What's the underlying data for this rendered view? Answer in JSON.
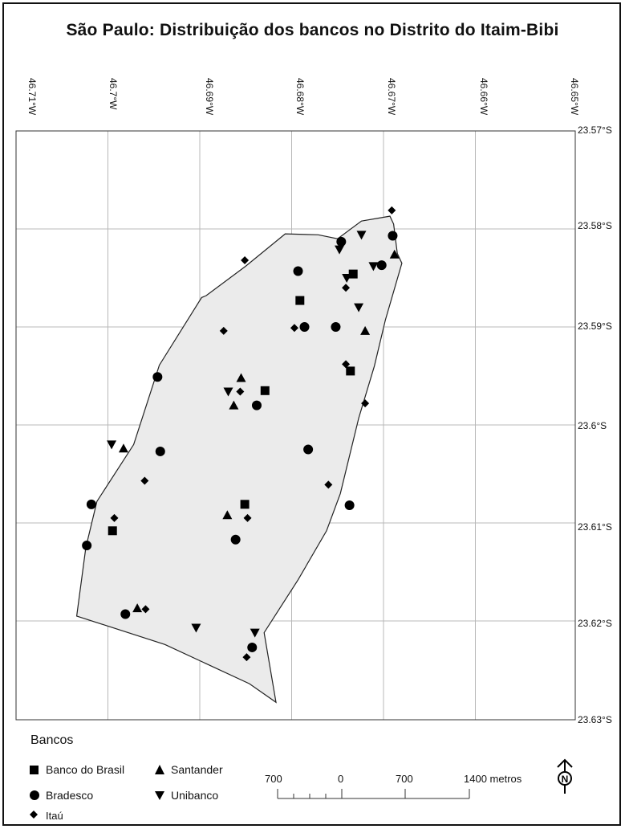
{
  "title": "São Paulo: Distribuição dos bancos no Distrito do Itaim-Bibi",
  "lon_labels": [
    "46.71°W",
    "46.7°W",
    "46.69°W",
    "46.68°W",
    "46.67°W",
    "46.66°W",
    "46.65°W"
  ],
  "lat_labels": [
    "23.57°S",
    "23.58°S",
    "23.59°S",
    "23.6°S",
    "23.61°S",
    "23.62°S",
    "23.63°S"
  ],
  "legend": {
    "title": "Bancos",
    "items": {
      "banco_do_brasil": "Banco do Brasil",
      "santander": "Santander",
      "bradesco": "Bradesco",
      "unibanco": "Unibanco",
      "itau": "Itaú"
    }
  },
  "scale_bar": {
    "labels": [
      "700",
      "0",
      "700",
      "1400 metros"
    ]
  },
  "north_arrow": "N",
  "colors": {
    "district_fill": "#ebebeb",
    "outline": "#222222",
    "grid": "#b8b8b8",
    "symbol": "#000000"
  },
  "banks": [
    {
      "type": "itau",
      "lon": -46.6691,
      "lat": -23.5781
    },
    {
      "type": "bradesco",
      "lon": -46.669,
      "lat": -23.5807
    },
    {
      "type": "santander",
      "lon": -46.6688,
      "lat": -23.5826
    },
    {
      "type": "bradesco",
      "lon": -46.6702,
      "lat": -23.5837
    },
    {
      "type": "unibanco",
      "lon": -46.6711,
      "lat": -23.5838
    },
    {
      "type": "unibanco",
      "lon": -46.6724,
      "lat": -23.5806
    },
    {
      "type": "bradesco",
      "lon": -46.6746,
      "lat": -23.5813
    },
    {
      "type": "unibanco",
      "lon": -46.6748,
      "lat": -23.5821
    },
    {
      "type": "banco_do_brasil",
      "lon": -46.6733,
      "lat": -23.5846
    },
    {
      "type": "unibanco",
      "lon": -46.674,
      "lat": -23.585
    },
    {
      "type": "itau",
      "lon": -46.6741,
      "lat": -23.586
    },
    {
      "type": "unibanco",
      "lon": -46.6727,
      "lat": -23.588
    },
    {
      "type": "bradesco",
      "lon": -46.6752,
      "lat": -23.59
    },
    {
      "type": "santander",
      "lon": -46.672,
      "lat": -23.5904
    },
    {
      "type": "itau",
      "lon": -46.6741,
      "lat": -23.5938
    },
    {
      "type": "banco_do_brasil",
      "lon": -46.6736,
      "lat": -23.5945
    },
    {
      "type": "itau",
      "lon": -46.672,
      "lat": -23.5978
    },
    {
      "type": "bradesco",
      "lon": -46.6793,
      "lat": -23.5843
    },
    {
      "type": "banco_do_brasil",
      "lon": -46.6791,
      "lat": -23.5873
    },
    {
      "type": "bradesco",
      "lon": -46.6786,
      "lat": -23.59
    },
    {
      "type": "itau",
      "lon": -46.6797,
      "lat": -23.5901
    },
    {
      "type": "itau",
      "lon": -46.6851,
      "lat": -23.5832
    },
    {
      "type": "itau",
      "lon": -46.6874,
      "lat": -23.5904
    },
    {
      "type": "bradesco",
      "lon": -46.6946,
      "lat": -23.5951
    },
    {
      "type": "santander",
      "lon": -46.6855,
      "lat": -23.5952
    },
    {
      "type": "banco_do_brasil",
      "lon": -46.6829,
      "lat": -23.5965
    },
    {
      "type": "unibanco",
      "lon": -46.6869,
      "lat": -23.5966
    },
    {
      "type": "itau",
      "lon": -46.6856,
      "lat": -23.5966
    },
    {
      "type": "santander",
      "lon": -46.6863,
      "lat": -23.598
    },
    {
      "type": "bradesco",
      "lon": -46.6838,
      "lat": -23.598
    },
    {
      "type": "bradesco",
      "lon": -46.6782,
      "lat": -23.6025
    },
    {
      "type": "itau",
      "lon": -46.676,
      "lat": -23.6061
    },
    {
      "type": "bradesco",
      "lon": -46.6737,
      "lat": -23.6082
    },
    {
      "type": "unibanco",
      "lon": -46.6996,
      "lat": -23.602
    },
    {
      "type": "santander",
      "lon": -46.6983,
      "lat": -23.6024
    },
    {
      "type": "bradesco",
      "lon": -46.6943,
      "lat": -23.6027
    },
    {
      "type": "itau",
      "lon": -46.696,
      "lat": -23.6057
    },
    {
      "type": "bradesco",
      "lon": -46.7018,
      "lat": -23.6081
    },
    {
      "type": "itau",
      "lon": -46.6993,
      "lat": -23.6095
    },
    {
      "type": "banco_do_brasil",
      "lon": -46.6995,
      "lat": -23.6108
    },
    {
      "type": "banco_do_brasil",
      "lon": -46.6851,
      "lat": -23.6081
    },
    {
      "type": "santander",
      "lon": -46.687,
      "lat": -23.6092
    },
    {
      "type": "itau",
      "lon": -46.6848,
      "lat": -23.6095
    },
    {
      "type": "bradesco",
      "lon": -46.6861,
      "lat": -23.6117
    },
    {
      "type": "bradesco",
      "lon": -46.7023,
      "lat": -23.6123
    },
    {
      "type": "santander",
      "lon": -46.6968,
      "lat": -23.6187
    },
    {
      "type": "itau",
      "lon": -46.6959,
      "lat": -23.6188
    },
    {
      "type": "bradesco",
      "lon": -46.6981,
      "lat": -23.6193
    },
    {
      "type": "unibanco",
      "lon": -46.6904,
      "lat": -23.6207
    },
    {
      "type": "unibanco",
      "lon": -46.684,
      "lat": -23.6212
    },
    {
      "type": "bradesco",
      "lon": -46.6843,
      "lat": -23.6227
    },
    {
      "type": "itau",
      "lon": -46.6849,
      "lat": -23.6237
    }
  ],
  "district_boundary": [
    [
      -46.6724,
      -23.5792
    ],
    [
      -46.6693,
      -23.5787
    ],
    [
      -46.6689,
      -23.5795
    ],
    [
      -46.6685,
      -23.5825
    ],
    [
      -46.668,
      -23.5835
    ],
    [
      -46.6698,
      -23.5893
    ],
    [
      -46.671,
      -23.594
    ],
    [
      -46.6727,
      -23.5993
    ],
    [
      -46.6747,
      -23.607
    ],
    [
      -46.6762,
      -23.6108
    ],
    [
      -46.6793,
      -23.6158
    ],
    [
      -46.683,
      -23.6212
    ],
    [
      -46.6817,
      -23.6283
    ],
    [
      -46.6846,
      -23.6264
    ],
    [
      -46.6938,
      -23.6224
    ],
    [
      -46.7034,
      -23.6195
    ],
    [
      -46.7024,
      -23.6125
    ],
    [
      -46.7012,
      -23.6078
    ],
    [
      -46.6972,
      -23.602
    ],
    [
      -46.6944,
      -23.5939
    ],
    [
      -46.6898,
      -23.587
    ],
    [
      -46.6893,
      -23.5868
    ],
    [
      -46.685,
      -23.5838
    ],
    [
      -46.6807,
      -23.5805
    ],
    [
      -46.6771,
      -23.5806
    ],
    [
      -46.675,
      -23.581
    ],
    [
      -46.6724,
      -23.5792
    ]
  ]
}
